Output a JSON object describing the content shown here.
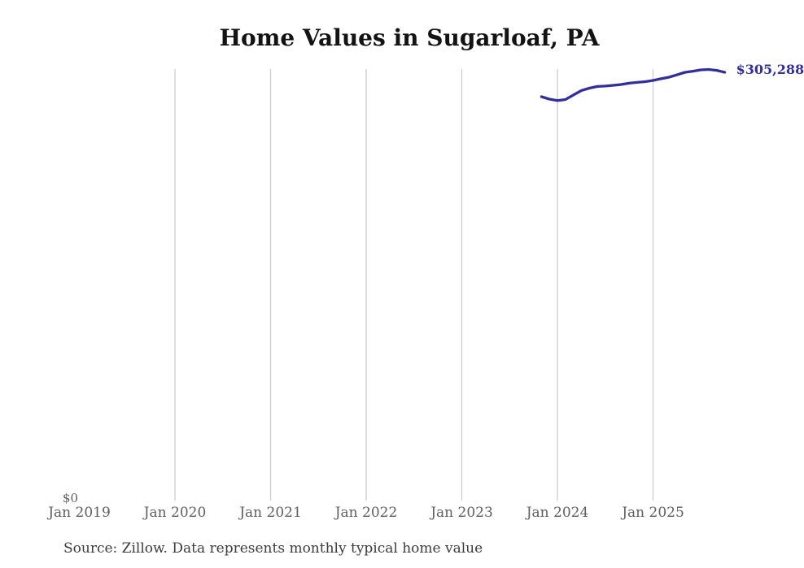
{
  "source_note": "Source: Zillow. Data represents monthly typical home value",
  "colors": {
    "background": "#ffffff",
    "line": "#322e9c",
    "gridline": "#c9c9c9",
    "title_text": "#131313",
    "axis_text": "#5f5f5f",
    "source_text": "#3c3c3c",
    "end_label_text": "#322e9c"
  },
  "chart_data": {
    "type": "line",
    "title": "Home Values in Sugarloaf, PA",
    "xlabel": "",
    "ylabel": "",
    "ylim": [
      0,
      310000
    ],
    "grid": "vertical-only",
    "legend": "none",
    "y_axis": {
      "min": 0,
      "zero_label": "$0"
    },
    "x_axis": {
      "ticks": [
        {
          "label": "Jan 2019",
          "gridline": false
        },
        {
          "label": "Jan 2020",
          "gridline": true
        },
        {
          "label": "Jan 2021",
          "gridline": true
        },
        {
          "label": "Jan 2022",
          "gridline": true
        },
        {
          "label": "Jan 2023",
          "gridline": true
        },
        {
          "label": "Jan 2024",
          "gridline": true
        },
        {
          "label": "Jan 2025",
          "gridline": true
        }
      ]
    },
    "end_label": "$305,288",
    "series": [
      {
        "name": "Monthly typical home value",
        "color": "#322e9c",
        "months": [
          "2023-11",
          "2023-12",
          "2024-01",
          "2024-02",
          "2024-03",
          "2024-04",
          "2024-05",
          "2024-06",
          "2024-07",
          "2024-08",
          "2024-09",
          "2024-10",
          "2024-11",
          "2024-12",
          "2025-01",
          "2025-02",
          "2025-03",
          "2025-04",
          "2025-05",
          "2025-06",
          "2025-07",
          "2025-08",
          "2025-09",
          "2025-10"
        ],
        "values": [
          287900,
          286200,
          285100,
          285900,
          289100,
          292300,
          294000,
          295200,
          295500,
          296000,
          296600,
          297500,
          298100,
          298600,
          299500,
          300700,
          301800,
          303500,
          305300,
          306100,
          307000,
          307300,
          306700,
          305288
        ]
      }
    ]
  }
}
